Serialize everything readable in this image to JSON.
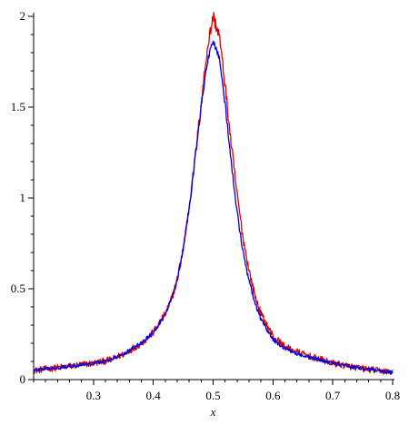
{
  "chart_data": {
    "type": "line",
    "title": "",
    "xlabel": "x",
    "ylabel": "",
    "xlim": [
      0.2,
      0.8
    ],
    "ylim": [
      0,
      2
    ],
    "x_ticks": [
      {
        "value": 0.3,
        "label": "0.3"
      },
      {
        "value": 0.4,
        "label": "0.4"
      },
      {
        "value": 0.5,
        "label": "0.5"
      },
      {
        "value": 0.6,
        "label": "0.6"
      },
      {
        "value": 0.7,
        "label": "0.7"
      },
      {
        "value": 0.8,
        "label": "0.8"
      }
    ],
    "y_ticks": [
      {
        "value": 0,
        "label": "0"
      },
      {
        "value": 0.5,
        "label": "0.5"
      },
      {
        "value": 1,
        "label": "1"
      },
      {
        "value": 1.5,
        "label": "1.5"
      },
      {
        "value": 2,
        "label": "2"
      }
    ],
    "grid": false,
    "legend": "none",
    "series": [
      {
        "color": "#e00000",
        "noise": 0.018,
        "points": [
          [
            0.2,
            0.05
          ],
          [
            0.25,
            0.07
          ],
          [
            0.3,
            0.09
          ],
          [
            0.33,
            0.11
          ],
          [
            0.35,
            0.14
          ],
          [
            0.38,
            0.2
          ],
          [
            0.4,
            0.26
          ],
          [
            0.42,
            0.36
          ],
          [
            0.43,
            0.44
          ],
          [
            0.44,
            0.55
          ],
          [
            0.45,
            0.72
          ],
          [
            0.46,
            0.95
          ],
          [
            0.47,
            1.22
          ],
          [
            0.48,
            1.52
          ],
          [
            0.49,
            1.82
          ],
          [
            0.5,
            2.0
          ],
          [
            0.51,
            1.9
          ],
          [
            0.52,
            1.62
          ],
          [
            0.53,
            1.3
          ],
          [
            0.54,
            1.02
          ],
          [
            0.55,
            0.78
          ],
          [
            0.56,
            0.6
          ],
          [
            0.57,
            0.46
          ],
          [
            0.58,
            0.36
          ],
          [
            0.6,
            0.24
          ],
          [
            0.62,
            0.18
          ],
          [
            0.65,
            0.14
          ],
          [
            0.7,
            0.09
          ],
          [
            0.75,
            0.06
          ],
          [
            0.8,
            0.04
          ]
        ]
      },
      {
        "color": "#0000e0",
        "noise": 0.01,
        "points": [
          [
            0.2,
            0.05
          ],
          [
            0.25,
            0.07
          ],
          [
            0.3,
            0.09
          ],
          [
            0.33,
            0.11
          ],
          [
            0.35,
            0.14
          ],
          [
            0.38,
            0.2
          ],
          [
            0.4,
            0.26
          ],
          [
            0.42,
            0.36
          ],
          [
            0.43,
            0.44
          ],
          [
            0.44,
            0.55
          ],
          [
            0.45,
            0.72
          ],
          [
            0.46,
            0.95
          ],
          [
            0.47,
            1.22
          ],
          [
            0.48,
            1.5
          ],
          [
            0.49,
            1.74
          ],
          [
            0.5,
            1.87
          ],
          [
            0.51,
            1.78
          ],
          [
            0.52,
            1.52
          ],
          [
            0.53,
            1.2
          ],
          [
            0.54,
            0.92
          ],
          [
            0.55,
            0.7
          ],
          [
            0.56,
            0.54
          ],
          [
            0.57,
            0.42
          ],
          [
            0.58,
            0.33
          ],
          [
            0.6,
            0.22
          ],
          [
            0.62,
            0.17
          ],
          [
            0.65,
            0.13
          ],
          [
            0.7,
            0.09
          ],
          [
            0.75,
            0.06
          ],
          [
            0.8,
            0.04
          ]
        ]
      }
    ]
  }
}
